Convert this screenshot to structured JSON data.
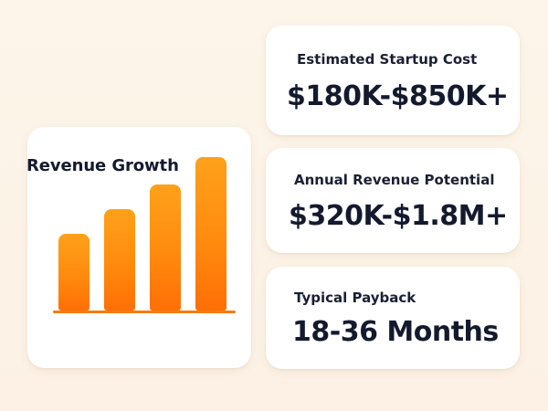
{
  "revenue_growth": {
    "title": "Revenue Growth",
    "chart_data": {
      "type": "bar",
      "title": "Revenue Growth",
      "categories": [
        "",
        "",
        "",
        ""
      ],
      "values": [
        2.8,
        3.7,
        4.6,
        5.6
      ],
      "value_scale": "relative",
      "ylim": [
        0,
        6
      ],
      "xlabel": "",
      "ylabel": "",
      "grid": false,
      "bar_color": "#ff8b0e",
      "baseline_color": "#f57c0a"
    }
  },
  "metrics": {
    "startup_cost": {
      "label": "Estimated Startup Cost",
      "value": "$180K-$850K+"
    },
    "annual_revenue": {
      "label": "Annual Revenue Potential",
      "value": "$320K-$1.8M+"
    },
    "payback": {
      "label": "Typical Payback",
      "value": "18-36 Months"
    }
  },
  "colors": {
    "background": "#fdf3e6",
    "card": "#ffffff",
    "text": "#141a2e",
    "accent": "#ff8b0e"
  }
}
